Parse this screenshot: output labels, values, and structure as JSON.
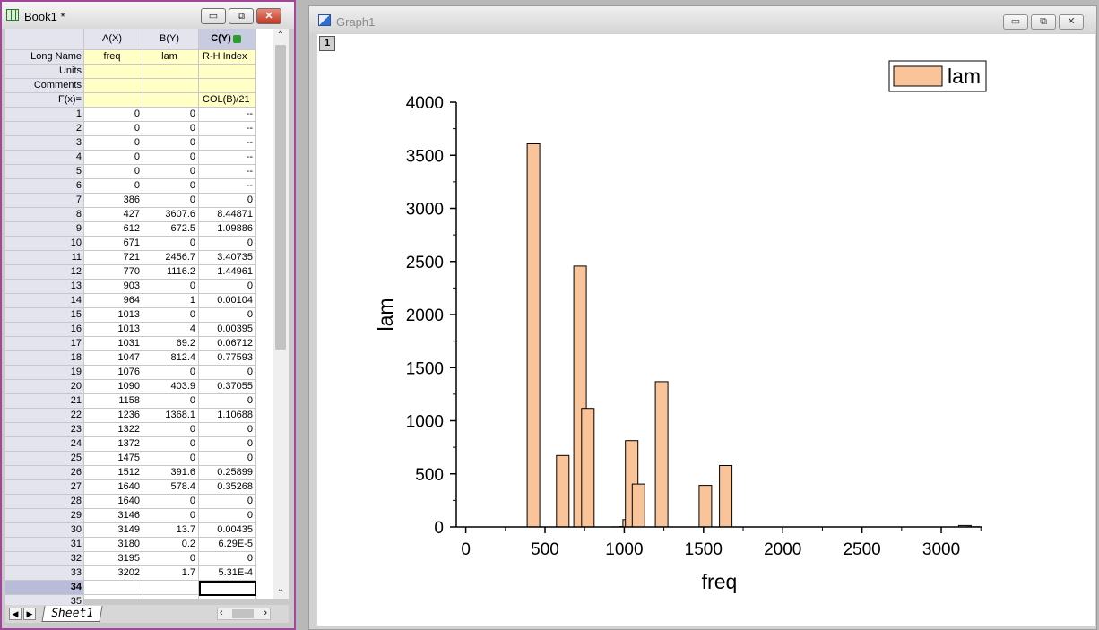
{
  "book": {
    "title": "Book1 *",
    "window_buttons": {
      "minimize": "▭",
      "restore": "⧉",
      "close": "✕"
    },
    "columns": [
      {
        "header": "A(X)",
        "long_name": "freq",
        "units": "",
        "comments": "",
        "formula": ""
      },
      {
        "header": "B(Y)",
        "long_name": "lam",
        "units": "",
        "comments": "",
        "formula": ""
      },
      {
        "header": "C(Y)",
        "long_name": "R-H Index",
        "units": "",
        "comments": "",
        "formula": "COL(B)/21"
      }
    ],
    "meta_labels": {
      "long_name": "Long Name",
      "units": "Units",
      "comments": "Comments",
      "formula": "F(x)="
    },
    "rows": [
      [
        "1",
        "0",
        "0",
        "--"
      ],
      [
        "2",
        "0",
        "0",
        "--"
      ],
      [
        "3",
        "0",
        "0",
        "--"
      ],
      [
        "4",
        "0",
        "0",
        "--"
      ],
      [
        "5",
        "0",
        "0",
        "--"
      ],
      [
        "6",
        "0",
        "0",
        "--"
      ],
      [
        "7",
        "386",
        "0",
        "0"
      ],
      [
        "8",
        "427",
        "3607.6",
        "8.44871"
      ],
      [
        "9",
        "612",
        "672.5",
        "1.09886"
      ],
      [
        "10",
        "671",
        "0",
        "0"
      ],
      [
        "11",
        "721",
        "2456.7",
        "3.40735"
      ],
      [
        "12",
        "770",
        "1116.2",
        "1.44961"
      ],
      [
        "13",
        "903",
        "0",
        "0"
      ],
      [
        "14",
        "964",
        "1",
        "0.00104"
      ],
      [
        "15",
        "1013",
        "0",
        "0"
      ],
      [
        "16",
        "1013",
        "4",
        "0.00395"
      ],
      [
        "17",
        "1031",
        "69.2",
        "0.06712"
      ],
      [
        "18",
        "1047",
        "812.4",
        "0.77593"
      ],
      [
        "19",
        "1076",
        "0",
        "0"
      ],
      [
        "20",
        "1090",
        "403.9",
        "0.37055"
      ],
      [
        "21",
        "1158",
        "0",
        "0"
      ],
      [
        "22",
        "1236",
        "1368.1",
        "1.10688"
      ],
      [
        "23",
        "1322",
        "0",
        "0"
      ],
      [
        "24",
        "1372",
        "0",
        "0"
      ],
      [
        "25",
        "1475",
        "0",
        "0"
      ],
      [
        "26",
        "1512",
        "391.6",
        "0.25899"
      ],
      [
        "27",
        "1640",
        "578.4",
        "0.35268"
      ],
      [
        "28",
        "1640",
        "0",
        "0"
      ],
      [
        "29",
        "3146",
        "0",
        "0"
      ],
      [
        "30",
        "3149",
        "13.7",
        "0.00435"
      ],
      [
        "31",
        "3180",
        "0.2",
        "6.29E-5"
      ],
      [
        "32",
        "3195",
        "0",
        "0"
      ],
      [
        "33",
        "3202",
        "1.7",
        "5.31E-4"
      ],
      [
        "34",
        "",
        "",
        ""
      ],
      [
        "35",
        "",
        "",
        ""
      ]
    ],
    "active_row": "34",
    "sheet_tab": "Sheet1",
    "scroll_arrows": {
      "up": "⌃",
      "down": "⌄",
      "first": "◀",
      "next": "▶",
      "left": "‹",
      "right": "›"
    }
  },
  "graph": {
    "title": "Graph1",
    "layer_badge": "1",
    "window_buttons": {
      "minimize": "▭",
      "restore": "⧉",
      "close": "✕"
    }
  },
  "chart_data": {
    "type": "bar",
    "xlabel": "freq",
    "ylabel": "lam",
    "xlim": [
      -60,
      3260
    ],
    "ylim": [
      0,
      4000
    ],
    "xticks": [
      "0",
      "500",
      "1000",
      "1500",
      "2000",
      "2500",
      "3000"
    ],
    "yticks": [
      "0",
      "500",
      "1000",
      "1500",
      "2000",
      "2500",
      "3000",
      "3500",
      "4000"
    ],
    "legend_position": "top-right",
    "bar_color": "#f9c49a",
    "series": [
      {
        "name": "lam",
        "x": [
          386,
          427,
          612,
          671,
          721,
          770,
          903,
          964,
          1013,
          1013,
          1031,
          1047,
          1076,
          1090,
          1158,
          1236,
          1322,
          1372,
          1475,
          1512,
          1640,
          1640,
          3146,
          3149,
          3180,
          3195,
          3202
        ],
        "values": [
          0,
          3607.6,
          672.5,
          0,
          2456.7,
          1116.2,
          0,
          1,
          0,
          4,
          69.2,
          812.4,
          0,
          403.9,
          0,
          1368.1,
          0,
          0,
          0,
          391.6,
          578.4,
          0,
          0,
          13.7,
          0.2,
          0,
          1.7
        ]
      }
    ]
  }
}
